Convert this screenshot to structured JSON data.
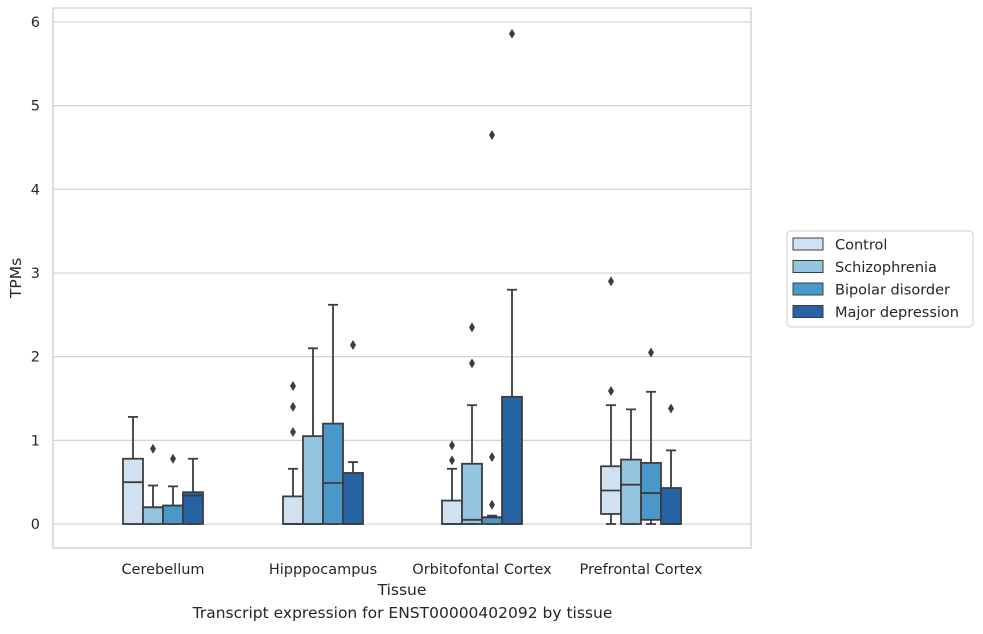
{
  "caption": "Transcript expression for ENST00000402092 by tissue",
  "chart_data": {
    "type": "box",
    "title": "",
    "xlabel": "Tissue",
    "ylabel": "TPMs",
    "ylim": [
      -0.3,
      6.15
    ],
    "yticks": [
      0,
      1,
      2,
      3,
      4,
      5,
      6
    ],
    "grid": "horizontal",
    "legend_position": "right",
    "categories": [
      "Cerebellum",
      "Hipppocampus",
      "Orbitofontal Cortex",
      "Prefrontal Cortex"
    ],
    "series": [
      {
        "name": "Control",
        "color": "#d0e1f2",
        "boxes": [
          {
            "whisker_low": 0,
            "q1": 0,
            "median": 0.5,
            "q3": 0.78,
            "whisker_high": 1.28,
            "outliers": []
          },
          {
            "whisker_low": 0,
            "q1": 0,
            "median": 0,
            "q3": 0.33,
            "whisker_high": 0.66,
            "outliers": [
              1.1,
              1.4,
              1.65
            ]
          },
          {
            "whisker_low": 0,
            "q1": 0,
            "median": 0,
            "q3": 0.28,
            "whisker_high": 0.66,
            "outliers": [
              0.76,
              0.94
            ]
          },
          {
            "whisker_low": 0,
            "q1": 0.12,
            "median": 0.4,
            "q3": 0.69,
            "whisker_high": 1.42,
            "outliers": [
              1.59,
              2.9
            ]
          }
        ]
      },
      {
        "name": "Schizophrenia",
        "color": "#94c4df",
        "boxes": [
          {
            "whisker_low": 0,
            "q1": 0,
            "median": 0.2,
            "q3": 0.2,
            "whisker_high": 0.46,
            "outliers": [
              0.9
            ]
          },
          {
            "whisker_low": 0,
            "q1": 0,
            "median": 0,
            "q3": 1.05,
            "whisker_high": 2.1,
            "outliers": []
          },
          {
            "whisker_low": 0,
            "q1": 0,
            "median": 0.05,
            "q3": 0.72,
            "whisker_high": 1.42,
            "outliers": [
              1.92,
              2.35
            ]
          },
          {
            "whisker_low": 0,
            "q1": 0,
            "median": 0.47,
            "q3": 0.77,
            "whisker_high": 1.37,
            "outliers": []
          }
        ]
      },
      {
        "name": "Bipolar disorder",
        "color": "#4a98c9",
        "boxes": [
          {
            "whisker_low": 0,
            "q1": 0,
            "median": 0.22,
            "q3": 0.22,
            "whisker_high": 0.45,
            "outliers": [
              0.78
            ]
          },
          {
            "whisker_low": 0,
            "q1": 0,
            "median": 0.49,
            "q3": 1.2,
            "whisker_high": 2.62,
            "outliers": []
          },
          {
            "whisker_low": 0,
            "q1": 0,
            "median": 0.08,
            "q3": 0.08,
            "whisker_high": 0.1,
            "outliers": [
              0.23,
              0.8,
              4.65
            ]
          },
          {
            "whisker_low": 0,
            "q1": 0.05,
            "median": 0.37,
            "q3": 0.73,
            "whisker_high": 1.58,
            "outliers": [
              2.05
            ]
          }
        ]
      },
      {
        "name": "Major depression",
        "color": "#2563a5",
        "boxes": [
          {
            "whisker_low": 0,
            "q1": 0,
            "median": 0.34,
            "q3": 0.38,
            "whisker_high": 0.78,
            "outliers": []
          },
          {
            "whisker_low": 0,
            "q1": 0,
            "median": 0,
            "q3": 0.61,
            "whisker_high": 0.74,
            "outliers": [
              2.14
            ]
          },
          {
            "whisker_low": 0,
            "q1": 0,
            "median": 0,
            "q3": 1.52,
            "whisker_high": 2.8,
            "outliers": [
              5.86
            ]
          },
          {
            "whisker_low": 0,
            "q1": 0,
            "median": 0,
            "q3": 0.43,
            "whisker_high": 0.88,
            "outliers": [
              1.38
            ]
          }
        ]
      }
    ]
  }
}
